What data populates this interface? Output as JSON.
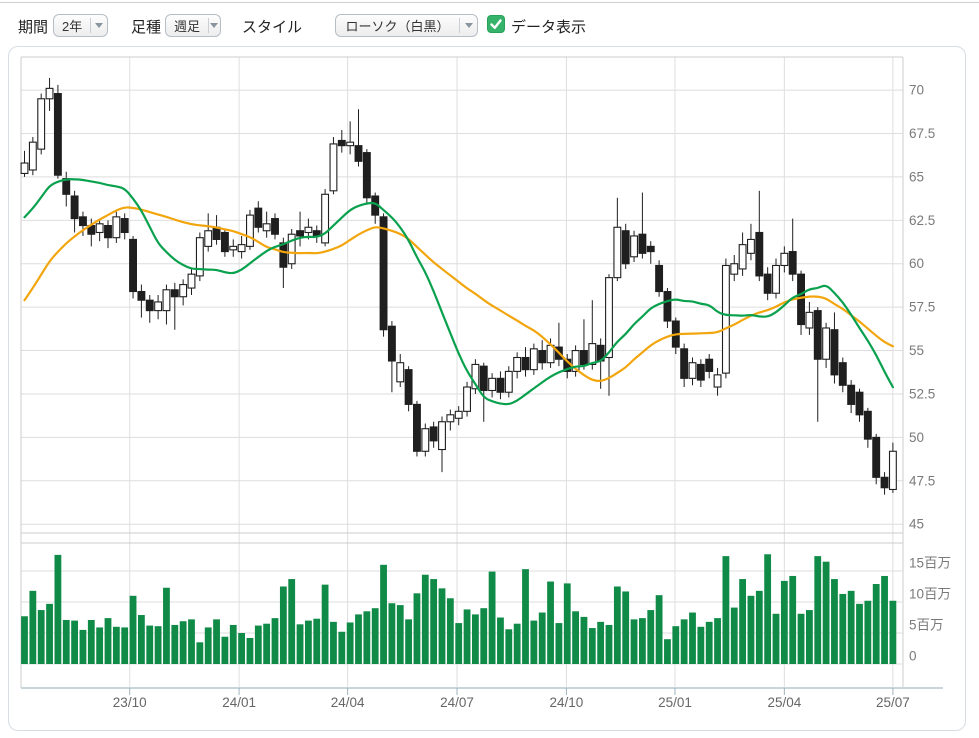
{
  "toolbar": {
    "period_label": "期間",
    "period_value": "2年",
    "bar_type_label": "足種",
    "bar_type_value": "週足",
    "style_label": "スタイル",
    "style_value": "ローソク（白黒）",
    "data_display_label": "データ表示",
    "data_display_checked": true
  },
  "colors": {
    "up_fill": "#ffffff",
    "down_fill": "#1f1f1f",
    "candle_outline": "#1f1f1f",
    "ma_short": "#0aa14e",
    "ma_long": "#f2a50c",
    "volume_bar": "#0f8a47",
    "checkbox_green": "#35b36b",
    "grid": "#dedede",
    "pane_border": "#cccccc",
    "axis_line": "#c9d5dd",
    "tick_text": "#7a7a7a",
    "x_tick_text": "#666666"
  },
  "chart_data": {
    "type": "candlestick",
    "title": "",
    "grid": true,
    "x_axis": {
      "ticks": [
        {
          "label": "23/10",
          "i": 12.6
        },
        {
          "label": "24/01",
          "i": 25.7
        },
        {
          "label": "24/04",
          "i": 38.7
        },
        {
          "label": "24/07",
          "i": 51.8
        },
        {
          "label": "24/10",
          "i": 64.9
        },
        {
          "label": "25/01",
          "i": 77.9
        },
        {
          "label": "25/04",
          "i": 91.0
        },
        {
          "label": "25/07",
          "i": 104.0
        }
      ]
    },
    "price_axis": {
      "min": 44.2,
      "max": 71.9,
      "ticks": [
        {
          "label": "70",
          "v": 70
        },
        {
          "label": "67.5",
          "v": 67.5
        },
        {
          "label": "65",
          "v": 65
        },
        {
          "label": "62.5",
          "v": 62.5
        },
        {
          "label": "60",
          "v": 60
        },
        {
          "label": "57.5",
          "v": 57.5
        },
        {
          "label": "55",
          "v": 55
        },
        {
          "label": "52.5",
          "v": 52.5
        },
        {
          "label": "50",
          "v": 50
        },
        {
          "label": "47.5",
          "v": 47.5
        },
        {
          "label": "45",
          "v": 45
        }
      ]
    },
    "volume_axis": {
      "unit": "百万",
      "ticks": [
        {
          "label": "15百万",
          "v": 15
        },
        {
          "label": "10百万",
          "v": 10
        },
        {
          "label": "5百万",
          "v": 5
        },
        {
          "label": "0",
          "v": 0
        }
      ]
    },
    "ma_short_period": 13,
    "ma_long_period": 26,
    "prehistory_closes": [
      48.0,
      48.7,
      49.4,
      50.1,
      50.8,
      51.5,
      52.2,
      52.9,
      53.6,
      54.3,
      55.0,
      55.7,
      57.0,
      59.4,
      60.5,
      61.0,
      61.5,
      62.0,
      62.3,
      62.5,
      62.7,
      63.0,
      63.2,
      63.3,
      63.5,
      63.5
    ],
    "candles_ohlc": [
      [
        65.2,
        66.5,
        65.0,
        65.8
      ],
      [
        65.4,
        67.3,
        65.1,
        67.0
      ],
      [
        66.6,
        69.8,
        66.3,
        69.5
      ],
      [
        69.5,
        70.7,
        68.8,
        70.1
      ],
      [
        69.8,
        70.3,
        64.9,
        65.1
      ],
      [
        64.9,
        65.3,
        63.3,
        64.0
      ],
      [
        63.9,
        64.2,
        61.8,
        62.6
      ],
      [
        62.7,
        63.0,
        61.6,
        62.2
      ],
      [
        62.2,
        62.6,
        61.0,
        61.7
      ],
      [
        61.8,
        62.5,
        61.3,
        62.3
      ],
      [
        62.2,
        62.5,
        60.9,
        61.5
      ],
      [
        61.5,
        63.0,
        61.2,
        62.7
      ],
      [
        62.6,
        62.9,
        61.4,
        61.8
      ],
      [
        61.4,
        61.6,
        58.0,
        58.4
      ],
      [
        58.4,
        58.8,
        56.9,
        57.9
      ],
      [
        57.9,
        58.2,
        56.6,
        57.3
      ],
      [
        57.3,
        58.2,
        56.8,
        57.8
      ],
      [
        57.3,
        58.8,
        56.5,
        58.5
      ],
      [
        58.5,
        58.9,
        56.2,
        58.1
      ],
      [
        58.1,
        59.1,
        57.6,
        58.8
      ],
      [
        58.6,
        59.7,
        58.2,
        59.4
      ],
      [
        59.3,
        61.8,
        59.0,
        61.5
      ],
      [
        61.0,
        62.9,
        60.7,
        61.9
      ],
      [
        62.1,
        62.8,
        61.1,
        61.4
      ],
      [
        61.8,
        62.0,
        60.4,
        60.7
      ],
      [
        60.8,
        61.4,
        60.4,
        61.0
      ],
      [
        60.7,
        61.6,
        60.3,
        61.1
      ],
      [
        61.0,
        63.1,
        60.8,
        62.8
      ],
      [
        63.2,
        63.6,
        61.8,
        62.1
      ],
      [
        61.9,
        63.0,
        61.5,
        62.3
      ],
      [
        62.6,
        62.9,
        61.4,
        61.7
      ],
      [
        61.2,
        61.5,
        58.6,
        59.8
      ],
      [
        60.0,
        62.0,
        59.7,
        61.7
      ],
      [
        61.9,
        63.0,
        61.0,
        61.6
      ],
      [
        61.8,
        62.6,
        61.4,
        62.1
      ],
      [
        61.9,
        62.2,
        61.2,
        61.6
      ],
      [
        61.2,
        64.3,
        61.0,
        64.0
      ],
      [
        64.2,
        67.3,
        64.0,
        66.9
      ],
      [
        67.1,
        67.7,
        66.4,
        66.8
      ],
      [
        66.8,
        68.2,
        66.3,
        67.0
      ],
      [
        66.8,
        68.9,
        65.6,
        65.9
      ],
      [
        66.4,
        66.6,
        63.4,
        63.8
      ],
      [
        63.9,
        64.1,
        62.3,
        62.8
      ],
      [
        62.7,
        62.9,
        55.8,
        56.2
      ],
      [
        56.4,
        56.7,
        52.6,
        54.4
      ],
      [
        53.2,
        54.8,
        52.9,
        54.3
      ],
      [
        53.9,
        54.1,
        51.5,
        51.9
      ],
      [
        51.9,
        52.1,
        48.9,
        49.2
      ],
      [
        49.2,
        50.8,
        48.9,
        50.5
      ],
      [
        50.6,
        50.9,
        49.4,
        49.8
      ],
      [
        49.3,
        51.2,
        48.0,
        50.9
      ],
      [
        50.9,
        51.6,
        50.4,
        51.3
      ],
      [
        51.1,
        51.8,
        50.7,
        51.5
      ],
      [
        51.5,
        53.2,
        51.2,
        52.9
      ],
      [
        52.8,
        54.5,
        52.5,
        54.2
      ],
      [
        54.1,
        54.3,
        50.9,
        52.7
      ],
      [
        52.7,
        53.7,
        52.3,
        53.4
      ],
      [
        53.4,
        53.8,
        52.2,
        52.6
      ],
      [
        52.6,
        54.1,
        52.3,
        53.8
      ],
      [
        53.8,
        54.9,
        53.4,
        54.6
      ],
      [
        54.6,
        55.2,
        53.5,
        53.9
      ],
      [
        53.9,
        55.4,
        53.6,
        55.1
      ],
      [
        55.0,
        55.6,
        53.9,
        54.3
      ],
      [
        54.3,
        55.7,
        54.0,
        55.3
      ],
      [
        55.2,
        56.6,
        54.1,
        54.5
      ],
      [
        54.5,
        54.8,
        53.4,
        53.8
      ],
      [
        53.8,
        55.3,
        53.5,
        55.0
      ],
      [
        55.0,
        56.8,
        53.9,
        54.2
      ],
      [
        54.2,
        57.9,
        53.9,
        55.4
      ],
      [
        55.3,
        55.7,
        52.8,
        54.4
      ],
      [
        54.6,
        59.4,
        52.4,
        59.2
      ],
      [
        59.2,
        63.8,
        59.0,
        62.1
      ],
      [
        61.9,
        62.3,
        59.7,
        60.0
      ],
      [
        60.4,
        61.9,
        60.1,
        61.6
      ],
      [
        61.7,
        64.1,
        60.3,
        60.6
      ],
      [
        61.0,
        61.3,
        60.0,
        60.7
      ],
      [
        59.9,
        60.2,
        58.1,
        58.4
      ],
      [
        58.4,
        58.6,
        56.3,
        56.7
      ],
      [
        56.7,
        56.9,
        54.8,
        55.2
      ],
      [
        55.1,
        55.4,
        52.9,
        53.4
      ],
      [
        53.4,
        54.6,
        53.0,
        54.3
      ],
      [
        54.2,
        54.5,
        52.9,
        53.3
      ],
      [
        54.5,
        54.8,
        53.4,
        53.8
      ],
      [
        52.9,
        54.0,
        52.4,
        53.6
      ],
      [
        53.7,
        60.3,
        53.4,
        59.9
      ],
      [
        59.4,
        60.5,
        59.0,
        60.0
      ],
      [
        59.7,
        61.8,
        59.3,
        61.1
      ],
      [
        60.6,
        62.3,
        60.2,
        61.4
      ],
      [
        61.8,
        64.2,
        59.0,
        59.3
      ],
      [
        59.4,
        59.8,
        57.9,
        58.3
      ],
      [
        58.3,
        60.3,
        58.0,
        59.9
      ],
      [
        59.9,
        61.0,
        59.5,
        60.6
      ],
      [
        60.7,
        62.6,
        59.0,
        59.4
      ],
      [
        59.4,
        59.6,
        55.9,
        56.5
      ],
      [
        56.3,
        57.8,
        55.9,
        57.2
      ],
      [
        57.3,
        57.5,
        50.9,
        54.5
      ],
      [
        54.5,
        56.6,
        54.0,
        56.3
      ],
      [
        56.2,
        57.2,
        53.1,
        53.6
      ],
      [
        54.3,
        54.6,
        52.6,
        53.0
      ],
      [
        53.0,
        53.3,
        51.4,
        51.9
      ],
      [
        52.6,
        52.8,
        50.9,
        51.3
      ],
      [
        51.5,
        51.7,
        49.4,
        49.9
      ],
      [
        50.0,
        50.2,
        47.3,
        47.7
      ],
      [
        47.7,
        48.0,
        46.7,
        47.1
      ],
      [
        47.0,
        49.7,
        46.8,
        49.2
      ]
    ],
    "volumes_millions": [
      7.7,
      11.8,
      8.7,
      9.7,
      17.6,
      7.1,
      7.0,
      5.5,
      7.1,
      5.9,
      7.4,
      6.0,
      5.9,
      11.0,
      7.9,
      6.2,
      6.1,
      12.3,
      6.3,
      6.9,
      7.2,
      3.5,
      5.9,
      7.2,
      4.4,
      6.3,
      5.0,
      4.2,
      6.2,
      6.5,
      7.4,
      12.5,
      13.7,
      6.4,
      7.0,
      7.3,
      12.8,
      6.8,
      5.2,
      6.7,
      8.0,
      8.5,
      9.0,
      16.0,
      9.8,
      9.5,
      7.2,
      11.4,
      14.4,
      13.7,
      12.2,
      10.6,
      6.6,
      8.8,
      8.0,
      9.0,
      14.9,
      7.5,
      5.6,
      6.5,
      15.3,
      7.0,
      8.3,
      13.3,
      6.6,
      13.0,
      8.5,
      7.6,
      5.8,
      6.8,
      6.3,
      12.5,
      11.7,
      7.2,
      7.4,
      8.7,
      11.1,
      4.0,
      6.1,
      7.2,
      8.3,
      6.0,
      6.8,
      7.4,
      17.4,
      9.1,
      13.7,
      11.0,
      11.8,
      17.7,
      8.1,
      13.4,
      14.2,
      8.1,
      8.7,
      17.4,
      16.5,
      13.7,
      11.3,
      11.8,
      9.7,
      10.2,
      12.9,
      14.2,
      10.2
    ]
  }
}
